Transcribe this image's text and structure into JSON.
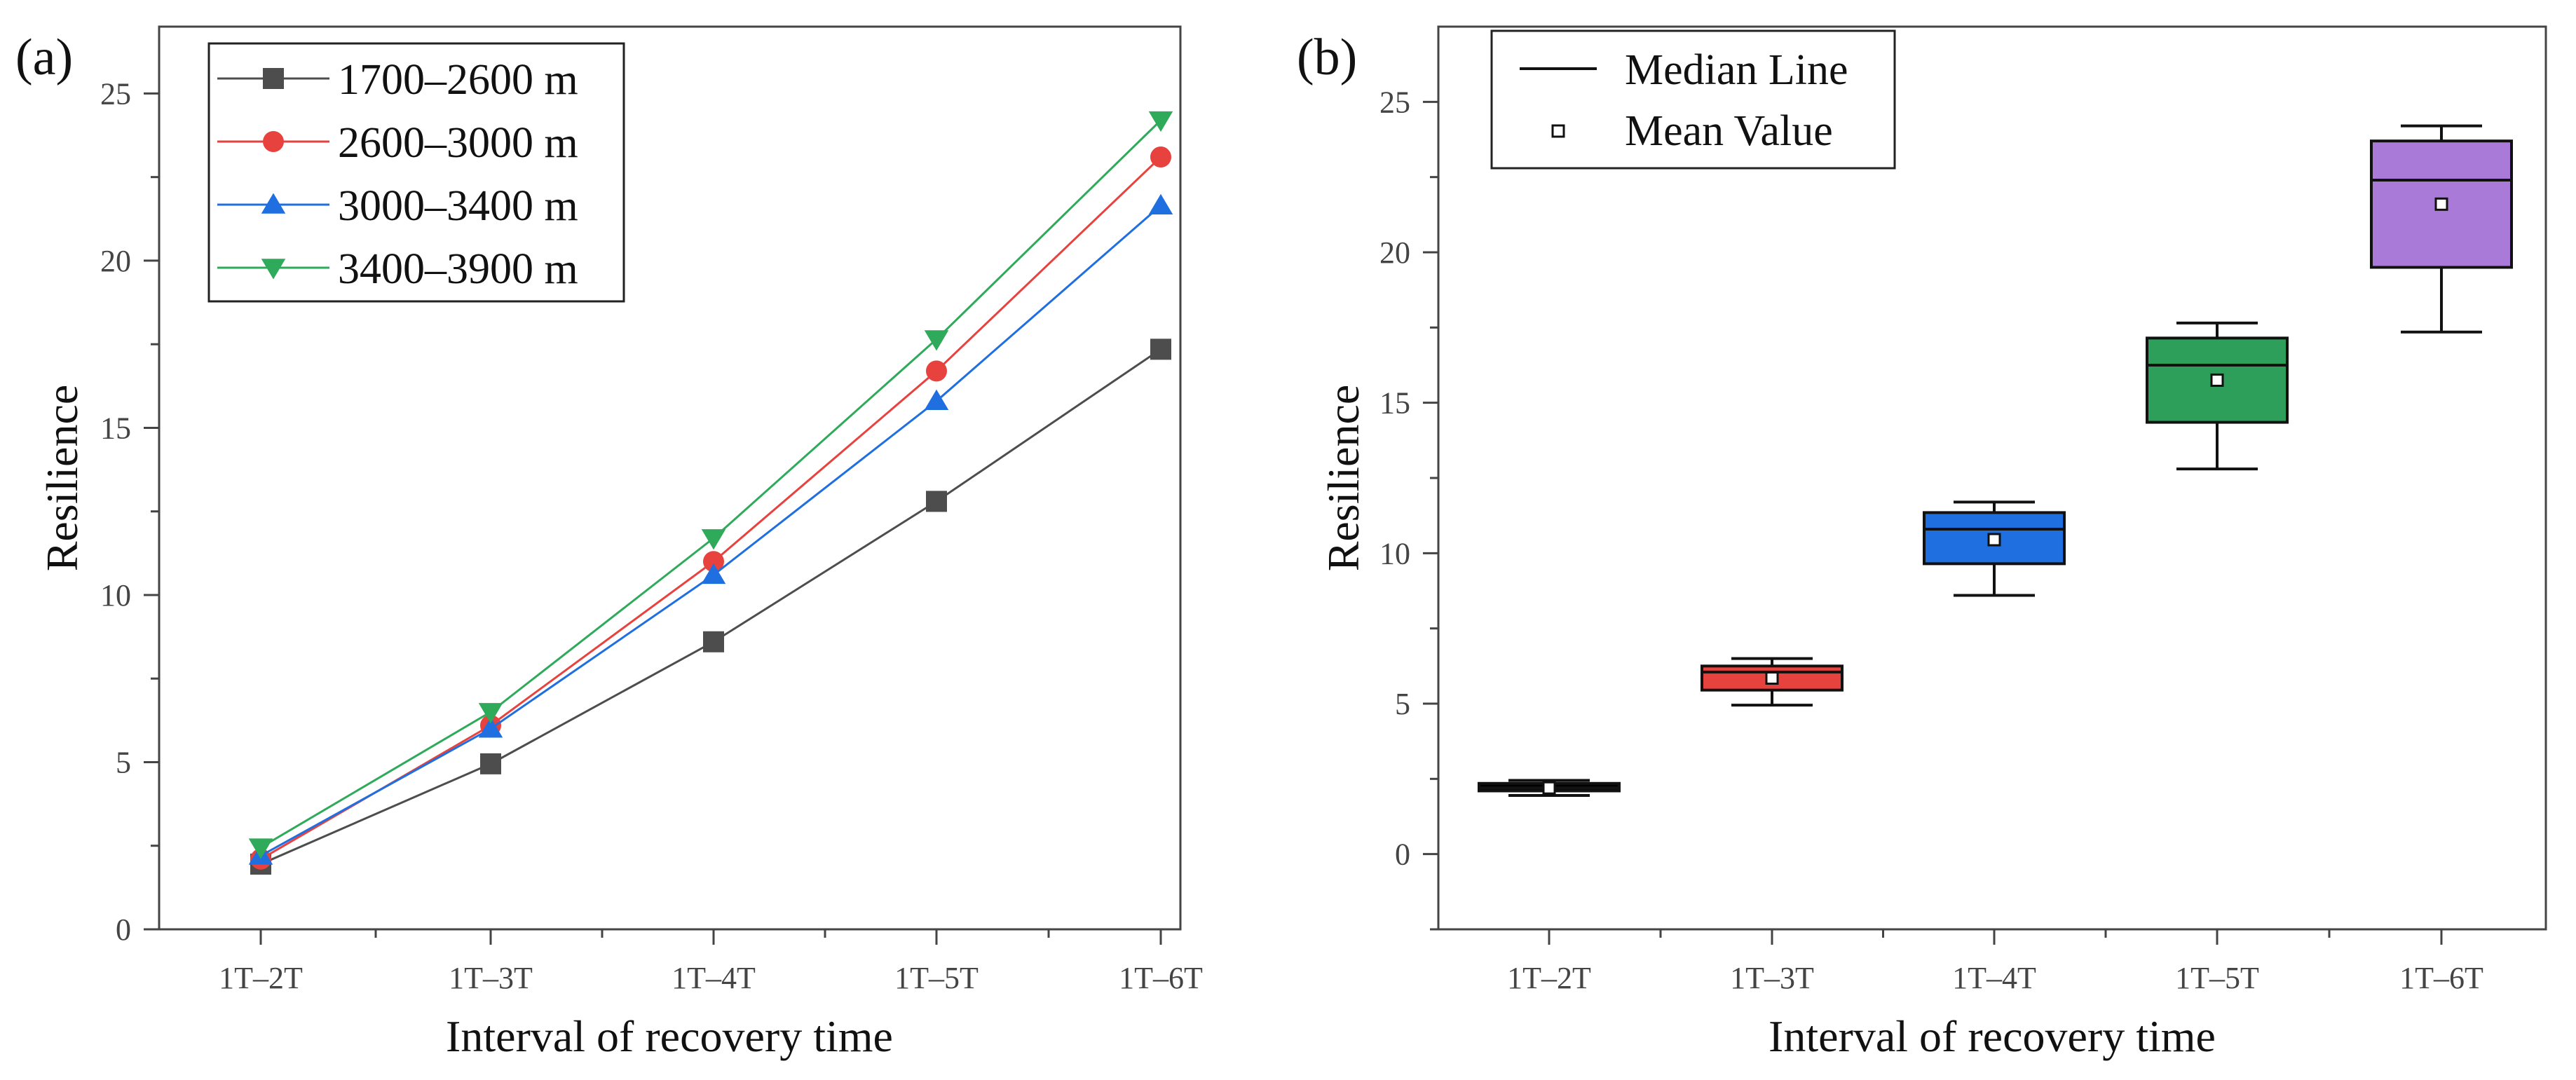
{
  "panel_labels": [
    "(a)",
    "(b)"
  ],
  "colors": {
    "series": [
      "#4d4d4d",
      "#e8423f",
      "#1f6fe0",
      "#2eaa5a"
    ],
    "boxes": [
      "#000000",
      "#e8423f",
      "#1f6fe0",
      "#2e9e5b",
      "#a97ad8"
    ]
  },
  "chart_data": [
    {
      "type": "line",
      "panel": "(a)",
      "title": "",
      "xlabel": "Interval of recovery time",
      "ylabel": "Resilience",
      "categories": [
        "1T–2T",
        "1T–3T",
        "1T–4T",
        "1T–5T",
        "1T–6T"
      ],
      "ylim": [
        0,
        27
      ],
      "yticks": [
        0,
        5,
        10,
        15,
        20,
        25
      ],
      "series": [
        {
          "name": "1700–2600 m",
          "marker": "square",
          "values": [
            1.95,
            4.95,
            8.6,
            12.8,
            17.35
          ]
        },
        {
          "name": "2600–3000 m",
          "marker": "circle",
          "values": [
            2.1,
            6.1,
            11.0,
            16.7,
            23.1
          ]
        },
        {
          "name": "3000–3400 m",
          "marker": "triangle-up",
          "values": [
            2.2,
            6.0,
            10.6,
            15.8,
            21.65
          ]
        },
        {
          "name": "3400–3900 m",
          "marker": "triangle-down",
          "values": [
            2.45,
            6.5,
            11.7,
            17.65,
            24.2
          ]
        }
      ],
      "legend_position": "top-left"
    },
    {
      "type": "box",
      "panel": "(b)",
      "title": "",
      "xlabel": "Interval of recovery time",
      "ylabel": "Resilience",
      "categories": [
        "1T–2T",
        "1T–3T",
        "1T–4T",
        "1T–5T",
        "1T–6T"
      ],
      "ylim": [
        -2.5,
        27.5
      ],
      "yticks": [
        0,
        5,
        10,
        15,
        20,
        25
      ],
      "boxes": [
        {
          "min": 1.95,
          "q1": 2.1,
          "median": 2.2,
          "q3": 2.35,
          "max": 2.45,
          "mean": 2.2
        },
        {
          "min": 4.95,
          "q1": 5.45,
          "median": 6.05,
          "q3": 6.25,
          "max": 6.5,
          "mean": 5.85
        },
        {
          "min": 8.6,
          "q1": 9.65,
          "median": 10.8,
          "q3": 11.35,
          "max": 11.7,
          "mean": 10.45
        },
        {
          "min": 12.8,
          "q1": 14.35,
          "median": 16.25,
          "q3": 17.15,
          "max": 17.65,
          "mean": 15.75
        },
        {
          "min": 17.35,
          "q1": 19.5,
          "median": 22.4,
          "q3": 23.7,
          "max": 24.2,
          "mean": 21.6
        }
      ],
      "legend": [
        "Median Line",
        "Mean Value"
      ],
      "legend_position": "top-left"
    }
  ]
}
